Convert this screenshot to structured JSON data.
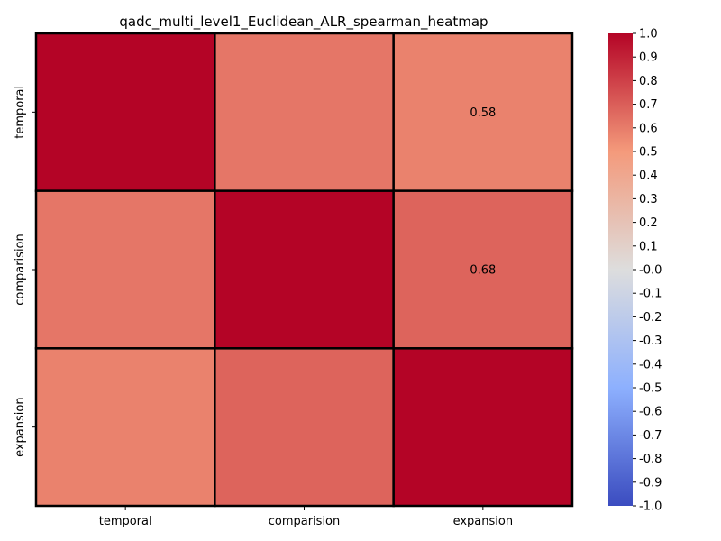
{
  "chart_data": {
    "type": "heatmap",
    "title": "qadc_multi_level1_Euclidean_ALR_spearman_heatmap",
    "xlabel": "",
    "ylabel": "",
    "x_categories": [
      "temporal",
      "comparision",
      "expansion"
    ],
    "y_categories": [
      "temporal",
      "comparision",
      "expansion"
    ],
    "values": [
      [
        1.0,
        0.62,
        0.58
      ],
      [
        0.62,
        1.0,
        0.68
      ],
      [
        0.58,
        0.68,
        1.0
      ]
    ],
    "annotations": [
      {
        "row": 0,
        "col": 2,
        "text": "0.58"
      },
      {
        "row": 1,
        "col": 2,
        "text": "0.68"
      }
    ],
    "colormap": "coolwarm",
    "vmin": -1.0,
    "vmax": 1.0,
    "colorbar_ticks": [
      "1.0",
      "0.9",
      "0.8",
      "0.7",
      "0.6",
      "0.5",
      "0.4",
      "0.3",
      "0.2",
      "0.1",
      "-0.0",
      "-0.1",
      "-0.2",
      "-0.3",
      "-0.4",
      "-0.5",
      "-0.6",
      "-0.7",
      "-0.8",
      "-0.9",
      "-1.0"
    ],
    "cell_border_color": "#000000",
    "grid": false,
    "legend": "colorbar-right"
  }
}
